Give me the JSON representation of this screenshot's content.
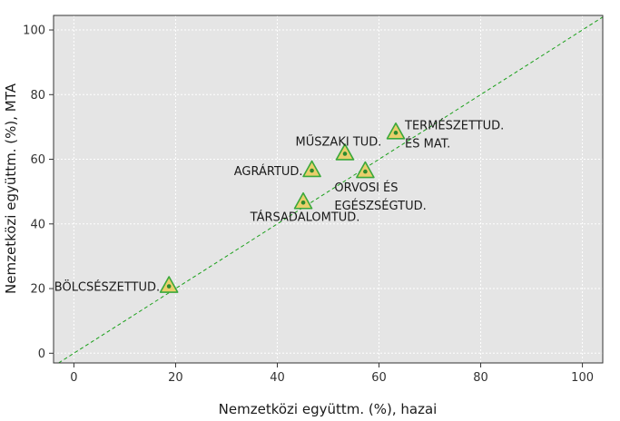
{
  "chart_data": {
    "type": "scatter",
    "title": "",
    "xlabel": "Nemzetközi együttm. (%), hazai",
    "ylabel": "Nemzetközi együttm. (%), MTA",
    "xlim": [
      -4,
      104
    ],
    "ylim": [
      -3,
      104.5
    ],
    "xticks": [
      0,
      20,
      40,
      60,
      80,
      100
    ],
    "yticks": [
      0,
      20,
      40,
      60,
      80,
      100
    ],
    "x_tick_labels": [
      "0",
      "20",
      "40",
      "60",
      "80",
      "100"
    ],
    "y_tick_labels": [
      "0",
      "20",
      "40",
      "60",
      "80",
      "100"
    ],
    "grid": true,
    "reference_line": {
      "type": "diagonal y=x",
      "style": "dashed",
      "color": "#1aa01a"
    },
    "marker": {
      "shape": "triangle",
      "fill": "#e9cf6b",
      "edge": "#3aa83a",
      "center_dot": "#2e8b2e"
    },
    "colors": {
      "panel": "#e5e5e5",
      "grid": "#ffffff"
    },
    "points": [
      {
        "label": [
          "BÖLCSÉSZETTUD."
        ],
        "x": 18.7,
        "y": 20.7
      },
      {
        "label": [
          "TÁRSADALOMTUD."
        ],
        "x": 45.1,
        "y": 46.6
      },
      {
        "label": [
          "AGRÁRTUD."
        ],
        "x": 46.8,
        "y": 56.5
      },
      {
        "label": [
          "MŰSZAKI TUD."
        ],
        "x": 53.3,
        "y": 61.7
      },
      {
        "label": [
          "ORVOSI ÉS",
          "EGÉSZSÉGTUD."
        ],
        "x": 57.3,
        "y": 56.2
      },
      {
        "label": [
          "TERMÉSZETTUD.",
          "ÉS MAT."
        ],
        "x": 63.3,
        "y": 68.2
      }
    ]
  }
}
